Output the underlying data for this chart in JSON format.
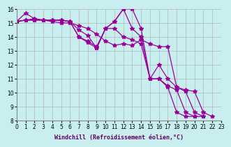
{
  "xlabel": "Windchill (Refroidissement éolien,°C)",
  "bg_color": "#c8eef0",
  "line_color": "#990099",
  "xlim": [
    0,
    23
  ],
  "ylim": [
    8,
    16
  ],
  "xticks": [
    0,
    1,
    2,
    3,
    4,
    5,
    6,
    7,
    8,
    9,
    10,
    11,
    12,
    13,
    14,
    15,
    16,
    17,
    18,
    19,
    20,
    21,
    22,
    23
  ],
  "yticks": [
    8,
    9,
    10,
    11,
    12,
    13,
    14,
    15,
    16
  ],
  "series": [
    {
      "x": [
        0,
        1,
        2,
        3,
        4,
        5,
        6,
        7,
        8,
        9,
        10,
        11,
        12,
        13,
        14,
        15,
        16,
        17,
        18,
        19,
        20,
        21,
        22
      ],
      "y": [
        15.1,
        15.7,
        15.3,
        15.2,
        15.2,
        15.2,
        15.1,
        14.0,
        13.6,
        13.2,
        14.6,
        15.1,
        16.0,
        16.0,
        14.6,
        11.0,
        12.0,
        11.0,
        10.4,
        10.2,
        10.1,
        8.6,
        8.3
      ]
    },
    {
      "x": [
        0,
        1,
        2,
        3,
        4,
        5,
        6,
        7,
        8,
        9,
        10,
        11,
        12,
        13,
        14,
        15,
        16,
        17,
        18,
        19,
        20,
        21
      ],
      "y": [
        15.1,
        15.2,
        15.2,
        15.2,
        15.1,
        15.0,
        15.0,
        14.8,
        14.6,
        14.2,
        13.7,
        13.4,
        13.5,
        13.4,
        13.8,
        13.5,
        13.3,
        13.3,
        10.4,
        10.1,
        8.6,
        8.3
      ]
    },
    {
      "x": [
        0,
        1,
        2,
        3,
        4,
        5,
        6,
        7,
        8,
        9,
        10,
        11,
        12,
        13,
        14,
        15,
        16,
        17,
        18,
        19,
        20
      ],
      "y": [
        15.1,
        15.2,
        15.2,
        15.2,
        15.2,
        15.2,
        15.1,
        14.5,
        14.1,
        13.2,
        14.6,
        15.1,
        16.0,
        14.6,
        14.0,
        11.0,
        11.0,
        10.4,
        8.6,
        8.3,
        8.3
      ]
    },
    {
      "x": [
        0,
        1,
        2,
        3,
        4,
        5,
        6,
        7,
        8,
        9,
        10,
        11,
        12,
        13,
        14,
        15,
        16,
        17,
        18,
        19,
        20,
        21
      ],
      "y": [
        15.1,
        15.2,
        15.3,
        15.2,
        15.2,
        15.2,
        15.1,
        14.0,
        13.7,
        13.3,
        14.6,
        14.6,
        14.0,
        13.8,
        13.5,
        11.0,
        11.0,
        10.5,
        10.2,
        8.6,
        8.3,
        8.3
      ]
    }
  ],
  "grid_color": "#b0b0b0",
  "marker": "*",
  "markersize": 4,
  "linewidth": 0.9,
  "label_fontsize": 6,
  "tick_fontsize": 5.5
}
